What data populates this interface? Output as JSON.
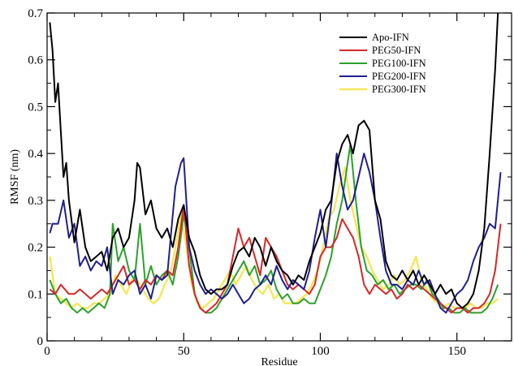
{
  "chart_data": {
    "type": "line",
    "xlabel": "Residue",
    "ylabel": "RMSF (nm)",
    "xlim": [
      0,
      170
    ],
    "ylim": [
      0,
      0.7
    ],
    "x_ticks": [
      0,
      50,
      100,
      150
    ],
    "y_ticks": [
      0,
      0.1,
      0.2,
      0.3,
      0.4,
      0.5,
      0.6,
      0.7
    ],
    "x_tick_labels": [
      "0",
      "50",
      "100",
      "150"
    ],
    "y_tick_labels": [
      "0",
      "0.1",
      "0.2",
      "0.3",
      "0.4",
      "0.5",
      "0.6",
      "0.7"
    ],
    "grid": false,
    "legend_position": "top-right",
    "series": [
      {
        "name": "Apo-IFN",
        "color": "#000000",
        "x": [
          1,
          2,
          3,
          4,
          5,
          6,
          7,
          8,
          10,
          12,
          14,
          16,
          18,
          20,
          22,
          24,
          26,
          28,
          30,
          32,
          33,
          34,
          36,
          38,
          40,
          42,
          44,
          46,
          48,
          50,
          52,
          54,
          56,
          58,
          60,
          62,
          64,
          66,
          68,
          70,
          72,
          74,
          76,
          78,
          80,
          82,
          84,
          86,
          88,
          90,
          92,
          94,
          96,
          98,
          100,
          102,
          104,
          106,
          108,
          110,
          112,
          114,
          116,
          118,
          120,
          122,
          124,
          126,
          128,
          130,
          132,
          134,
          136,
          138,
          140,
          142,
          144,
          146,
          148,
          150,
          152,
          154,
          156,
          158,
          160,
          162,
          164,
          165
        ],
        "values": [
          0.68,
          0.62,
          0.51,
          0.55,
          0.45,
          0.35,
          0.38,
          0.3,
          0.21,
          0.28,
          0.2,
          0.17,
          0.18,
          0.19,
          0.15,
          0.22,
          0.24,
          0.2,
          0.22,
          0.3,
          0.38,
          0.37,
          0.27,
          0.3,
          0.24,
          0.22,
          0.24,
          0.2,
          0.26,
          0.29,
          0.22,
          0.19,
          0.14,
          0.11,
          0.1,
          0.11,
          0.11,
          0.12,
          0.16,
          0.19,
          0.2,
          0.18,
          0.22,
          0.2,
          0.16,
          0.2,
          0.17,
          0.15,
          0.14,
          0.12,
          0.14,
          0.13,
          0.17,
          0.2,
          0.23,
          0.28,
          0.3,
          0.38,
          0.42,
          0.44,
          0.4,
          0.46,
          0.47,
          0.45,
          0.3,
          0.26,
          0.17,
          0.14,
          0.13,
          0.15,
          0.13,
          0.15,
          0.12,
          0.14,
          0.12,
          0.1,
          0.12,
          0.1,
          0.11,
          0.08,
          0.07,
          0.08,
          0.1,
          0.15,
          0.24,
          0.4,
          0.58,
          0.7
        ]
      },
      {
        "name": "PEG50-IFN",
        "color": "#d62728",
        "x": [
          1,
          3,
          5,
          8,
          10,
          12,
          14,
          16,
          18,
          20,
          22,
          24,
          26,
          28,
          30,
          32,
          34,
          36,
          38,
          40,
          42,
          44,
          46,
          48,
          50,
          52,
          54,
          56,
          58,
          60,
          62,
          64,
          66,
          68,
          70,
          72,
          74,
          76,
          78,
          80,
          82,
          84,
          86,
          88,
          90,
          92,
          94,
          96,
          98,
          100,
          102,
          104,
          106,
          108,
          110,
          112,
          114,
          116,
          118,
          120,
          122,
          124,
          126,
          128,
          130,
          132,
          134,
          136,
          138,
          140,
          142,
          144,
          146,
          148,
          150,
          152,
          154,
          156,
          158,
          160,
          162,
          164,
          166
        ],
        "values": [
          0.11,
          0.1,
          0.12,
          0.1,
          0.1,
          0.11,
          0.1,
          0.09,
          0.1,
          0.11,
          0.1,
          0.12,
          0.14,
          0.16,
          0.12,
          0.13,
          0.11,
          0.13,
          0.12,
          0.14,
          0.13,
          0.15,
          0.14,
          0.2,
          0.29,
          0.16,
          0.1,
          0.07,
          0.06,
          0.07,
          0.08,
          0.1,
          0.12,
          0.18,
          0.24,
          0.2,
          0.22,
          0.18,
          0.14,
          0.22,
          0.2,
          0.18,
          0.15,
          0.12,
          0.11,
          0.12,
          0.11,
          0.1,
          0.12,
          0.18,
          0.2,
          0.2,
          0.22,
          0.26,
          0.24,
          0.22,
          0.18,
          0.12,
          0.1,
          0.12,
          0.11,
          0.1,
          0.11,
          0.09,
          0.1,
          0.12,
          0.11,
          0.12,
          0.11,
          0.1,
          0.09,
          0.08,
          0.07,
          0.06,
          0.07,
          0.07,
          0.06,
          0.07,
          0.07,
          0.08,
          0.1,
          0.15,
          0.25
        ]
      },
      {
        "name": "PEG100-IFN",
        "color": "#2ca02c",
        "x": [
          1,
          3,
          5,
          7,
          9,
          11,
          13,
          15,
          17,
          19,
          21,
          23,
          24,
          26,
          28,
          30,
          32,
          34,
          36,
          38,
          40,
          42,
          44,
          46,
          48,
          50,
          52,
          54,
          56,
          58,
          60,
          62,
          64,
          66,
          68,
          70,
          72,
          74,
          76,
          78,
          80,
          82,
          84,
          86,
          88,
          90,
          92,
          94,
          96,
          98,
          100,
          102,
          104,
          106,
          108,
          110,
          111,
          113,
          115,
          117,
          119,
          121,
          123,
          125,
          127,
          129,
          131,
          133,
          135,
          137,
          139,
          141,
          143,
          145,
          147,
          149,
          151,
          153,
          155,
          157,
          159,
          161,
          163,
          165
        ],
        "values": [
          0.13,
          0.1,
          0.08,
          0.09,
          0.07,
          0.06,
          0.07,
          0.06,
          0.07,
          0.08,
          0.07,
          0.1,
          0.25,
          0.17,
          0.2,
          0.15,
          0.13,
          0.25,
          0.12,
          0.16,
          0.12,
          0.14,
          0.15,
          0.12,
          0.18,
          0.27,
          0.2,
          0.1,
          0.07,
          0.06,
          0.06,
          0.07,
          0.09,
          0.11,
          0.13,
          0.15,
          0.17,
          0.14,
          0.16,
          0.12,
          0.13,
          0.15,
          0.11,
          0.09,
          0.1,
          0.08,
          0.08,
          0.09,
          0.08,
          0.08,
          0.11,
          0.14,
          0.18,
          0.25,
          0.3,
          0.38,
          0.42,
          0.3,
          0.2,
          0.15,
          0.14,
          0.12,
          0.13,
          0.11,
          0.12,
          0.1,
          0.11,
          0.12,
          0.12,
          0.11,
          0.13,
          0.1,
          0.09,
          0.07,
          0.07,
          0.06,
          0.06,
          0.07,
          0.06,
          0.06,
          0.06,
          0.07,
          0.09,
          0.12
        ]
      },
      {
        "name": "PEG200-IFN",
        "color": "#1f1f8f",
        "x": [
          1,
          2,
          4,
          6,
          8,
          10,
          12,
          14,
          16,
          18,
          20,
          22,
          24,
          26,
          28,
          30,
          32,
          34,
          36,
          38,
          40,
          42,
          44,
          46,
          47,
          49,
          50,
          52,
          54,
          56,
          58,
          60,
          62,
          64,
          66,
          68,
          70,
          72,
          74,
          76,
          78,
          80,
          82,
          84,
          86,
          88,
          90,
          92,
          94,
          96,
          98,
          100,
          102,
          104,
          106,
          108,
          110,
          112,
          114,
          116,
          118,
          120,
          122,
          124,
          126,
          128,
          130,
          132,
          134,
          136,
          138,
          140,
          142,
          144,
          146,
          148,
          150,
          152,
          154,
          156,
          158,
          160,
          162,
          164,
          166
        ],
        "values": [
          0.23,
          0.25,
          0.25,
          0.3,
          0.22,
          0.25,
          0.16,
          0.18,
          0.15,
          0.17,
          0.16,
          0.2,
          0.1,
          0.13,
          0.12,
          0.14,
          0.15,
          0.1,
          0.12,
          0.09,
          0.14,
          0.13,
          0.14,
          0.27,
          0.33,
          0.38,
          0.39,
          0.2,
          0.15,
          0.12,
          0.1,
          0.11,
          0.1,
          0.09,
          0.1,
          0.12,
          0.1,
          0.08,
          0.09,
          0.11,
          0.12,
          0.14,
          0.12,
          0.16,
          0.13,
          0.11,
          0.13,
          0.12,
          0.11,
          0.15,
          0.22,
          0.28,
          0.2,
          0.29,
          0.4,
          0.33,
          0.28,
          0.3,
          0.35,
          0.4,
          0.36,
          0.3,
          0.22,
          0.15,
          0.12,
          0.12,
          0.11,
          0.13,
          0.12,
          0.15,
          0.12,
          0.13,
          0.1,
          0.07,
          0.06,
          0.08,
          0.1,
          0.11,
          0.13,
          0.17,
          0.2,
          0.22,
          0.25,
          0.24,
          0.36
        ]
      },
      {
        "name": "PEG300-IFN",
        "color": "#f2e85c",
        "x": [
          1,
          3,
          5,
          7,
          9,
          11,
          13,
          15,
          17,
          19,
          21,
          23,
          25,
          27,
          29,
          31,
          33,
          35,
          37,
          39,
          41,
          43,
          45,
          47,
          49,
          51,
          53,
          55,
          57,
          59,
          61,
          63,
          65,
          67,
          69,
          71,
          73,
          75,
          77,
          79,
          81,
          83,
          85,
          87,
          89,
          91,
          93,
          95,
          97,
          99,
          101,
          103,
          105,
          107,
          109,
          111,
          113,
          115,
          117,
          119,
          121,
          123,
          125,
          127,
          129,
          131,
          133,
          135,
          137,
          139,
          141,
          143,
          145,
          147,
          149,
          151,
          153,
          155,
          157,
          159,
          161,
          163,
          165
        ],
        "values": [
          0.18,
          0.1,
          0.09,
          0.08,
          0.07,
          0.08,
          0.07,
          0.07,
          0.08,
          0.08,
          0.09,
          0.1,
          0.14,
          0.12,
          0.1,
          0.13,
          0.13,
          0.11,
          0.09,
          0.08,
          0.09,
          0.12,
          0.14,
          0.2,
          0.27,
          0.2,
          0.12,
          0.08,
          0.07,
          0.08,
          0.09,
          0.11,
          0.13,
          0.15,
          0.12,
          0.14,
          0.16,
          0.13,
          0.11,
          0.1,
          0.12,
          0.09,
          0.1,
          0.08,
          0.08,
          0.08,
          0.09,
          0.1,
          0.12,
          0.15,
          0.2,
          0.26,
          0.28,
          0.33,
          0.37,
          0.3,
          0.25,
          0.2,
          0.18,
          0.15,
          0.13,
          0.11,
          0.12,
          0.14,
          0.12,
          0.13,
          0.15,
          0.18,
          0.13,
          0.11,
          0.09,
          0.08,
          0.07,
          0.08,
          0.07,
          0.07,
          0.07,
          0.08,
          0.07,
          0.07,
          0.08,
          0.08,
          0.09
        ]
      }
    ]
  }
}
